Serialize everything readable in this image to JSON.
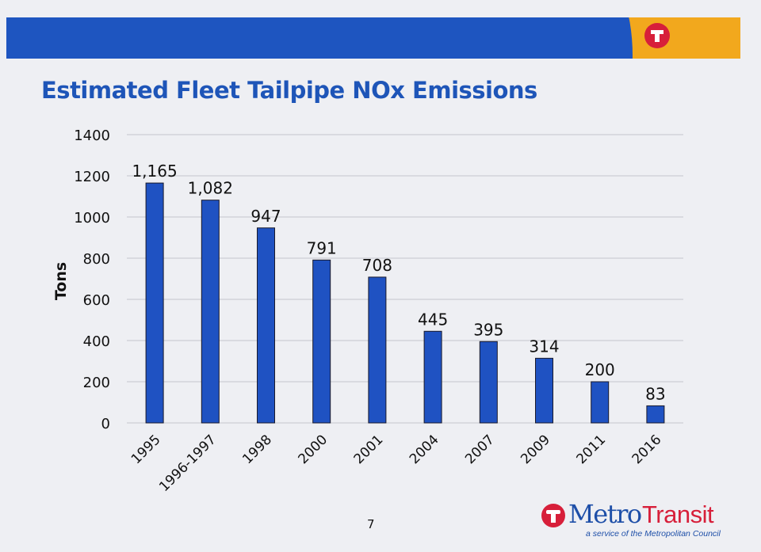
{
  "slide": {
    "title": "Estimated Fleet Tailpipe NOx Emissions",
    "page_number": "7",
    "colors": {
      "banner_blue": "#1e55c0",
      "banner_orange": "#f2a81d",
      "logo_red": "#d71f3a",
      "bar_fill": "#1f52c2",
      "title_blue": "#1e55b8"
    }
  },
  "logo": {
    "metro": "Metro",
    "transit": "Transit",
    "tagline": "a service of the Metropolitan Council"
  },
  "chart_data": {
    "type": "bar",
    "title": "Estimated Fleet Tailpipe NOx Emissions",
    "xlabel": "",
    "ylabel": "Tons",
    "ylim": [
      0,
      1400
    ],
    "yticks": [
      0,
      200,
      400,
      600,
      800,
      1000,
      1200,
      1400
    ],
    "ytick_labels": [
      "0",
      "200",
      "400",
      "600",
      "800",
      "1000",
      "1200",
      "1400"
    ],
    "grid": true,
    "legend": "none",
    "categories": [
      "1995",
      "1996-1997",
      "1998",
      "2000",
      "2001",
      "2004",
      "2007",
      "2009",
      "2011",
      "2016"
    ],
    "values": [
      1165,
      1082,
      947,
      791,
      708,
      445,
      395,
      314,
      200,
      83
    ],
    "data_labels": [
      "1,165",
      "1,082",
      "947",
      "791",
      "708",
      "445",
      "395",
      "314",
      "200",
      "83"
    ]
  }
}
